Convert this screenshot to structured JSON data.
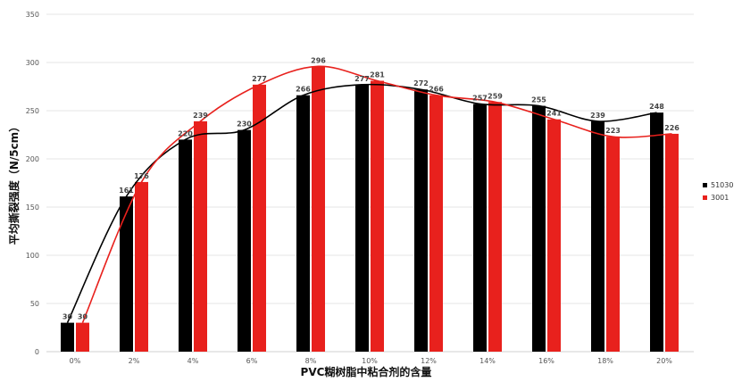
{
  "chart_data": {
    "type": "bar",
    "title": "",
    "xlabel": "PVC糊树脂中粘合剂的含量",
    "ylabel": "平均撕裂强度（N/5cm）",
    "categories": [
      "0%",
      "2%",
      "4%",
      "6%",
      "8%",
      "10%",
      "12%",
      "14%",
      "16%",
      "18%",
      "20%"
    ],
    "ylim": [
      0,
      350
    ],
    "yticks": [
      0,
      50,
      100,
      150,
      200,
      250,
      300,
      350
    ],
    "grid": "horizontal",
    "legend_position": "right",
    "series": [
      {
        "name": "51030",
        "color": "#000000",
        "values": [
          30,
          161,
          220,
          230,
          266,
          277,
          272,
          257,
          255,
          239,
          248
        ]
      },
      {
        "name": "3001",
        "color": "#e8211d",
        "values": [
          30,
          176,
          239,
          277,
          296,
          281,
          266,
          259,
          241,
          223,
          226
        ]
      }
    ]
  }
}
